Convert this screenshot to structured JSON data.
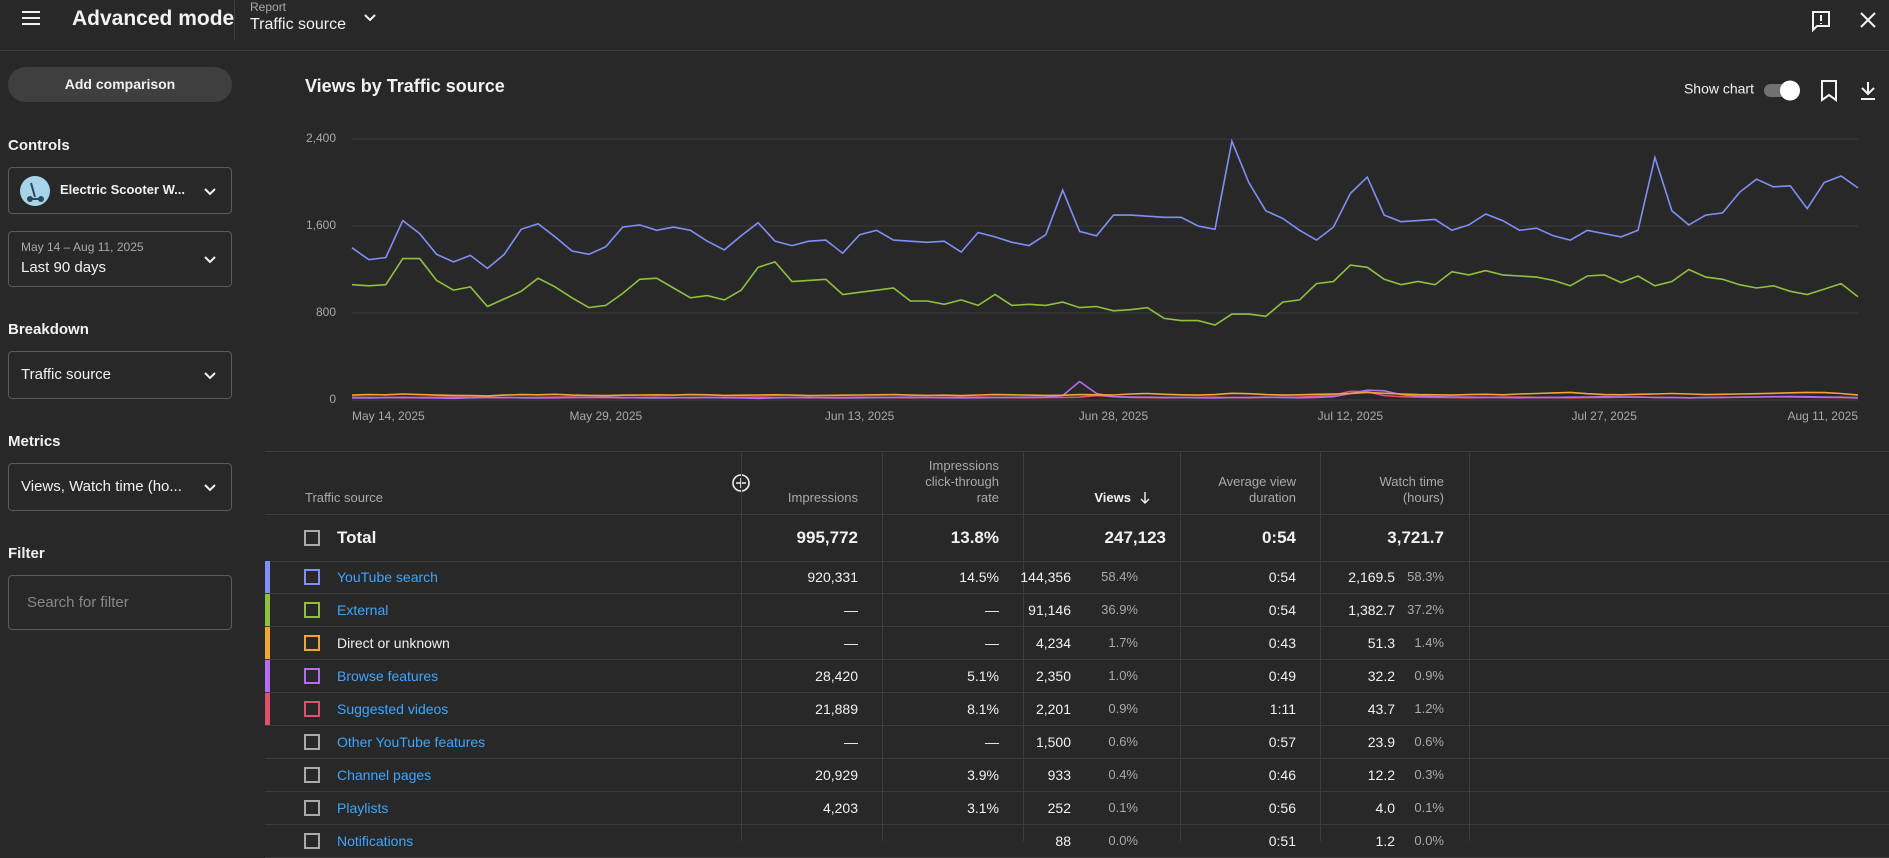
{
  "header": {
    "title": "Advanced mode",
    "report_label": "Report",
    "report": "Traffic source"
  },
  "sidebar": {
    "add_comparison": "Add comparison",
    "controls_label": "Controls",
    "content": "Electric Scooter W...",
    "date_range": "May 14 – Aug 11, 2025",
    "period": "Last 90 days",
    "breakdown_label": "Breakdown",
    "breakdown": "Traffic source",
    "metrics_label": "Metrics",
    "metrics": "Views, Watch time (ho...",
    "filter_label": "Filter",
    "filter_placeholder": "Search for filter"
  },
  "chart_data": {
    "type": "line",
    "title": "Views by Traffic source",
    "show_chart": "Show chart",
    "x": [
      "2025-05-14",
      "2025-05-15",
      "2025-05-16",
      "2025-05-17",
      "2025-05-18",
      "2025-05-19",
      "2025-05-20",
      "2025-05-21",
      "2025-05-22",
      "2025-05-23",
      "2025-05-24",
      "2025-05-25",
      "2025-05-26",
      "2025-05-27",
      "2025-05-28",
      "2025-05-29",
      "2025-05-30",
      "2025-05-31",
      "2025-06-01",
      "2025-06-02",
      "2025-06-03",
      "2025-06-04",
      "2025-06-05",
      "2025-06-06",
      "2025-06-07",
      "2025-06-08",
      "2025-06-09",
      "2025-06-10",
      "2025-06-11",
      "2025-06-12",
      "2025-06-13",
      "2025-06-14",
      "2025-06-15",
      "2025-06-16",
      "2025-06-17",
      "2025-06-18",
      "2025-06-19",
      "2025-06-20",
      "2025-06-21",
      "2025-06-22",
      "2025-06-23",
      "2025-06-24",
      "2025-06-25",
      "2025-06-26",
      "2025-06-27",
      "2025-06-28",
      "2025-06-29",
      "2025-06-30",
      "2025-07-01",
      "2025-07-02",
      "2025-07-03",
      "2025-07-04",
      "2025-07-05",
      "2025-07-06",
      "2025-07-07",
      "2025-07-08",
      "2025-07-09",
      "2025-07-10",
      "2025-07-11",
      "2025-07-12",
      "2025-07-13",
      "2025-07-14",
      "2025-07-15",
      "2025-07-16",
      "2025-07-17",
      "2025-07-18",
      "2025-07-19",
      "2025-07-20",
      "2025-07-21",
      "2025-07-22",
      "2025-07-23",
      "2025-07-24",
      "2025-07-25",
      "2025-07-26",
      "2025-07-27",
      "2025-07-28",
      "2025-07-29",
      "2025-07-30",
      "2025-07-31",
      "2025-08-01",
      "2025-08-02",
      "2025-08-03",
      "2025-08-04",
      "2025-08-05",
      "2025-08-06",
      "2025-08-07",
      "2025-08-08",
      "2025-08-09",
      "2025-08-10",
      "2025-08-11"
    ],
    "xticks": [
      {
        "value": "2025-05-14",
        "label": "May 14, 2025"
      },
      {
        "value": "2025-05-29",
        "label": "May 29, 2025"
      },
      {
        "value": "2025-06-13",
        "label": "Jun 13, 2025"
      },
      {
        "value": "2025-06-28",
        "label": "Jun 28, 2025"
      },
      {
        "value": "2025-07-12",
        "label": "Jul 12, 2025"
      },
      {
        "value": "2025-07-27",
        "label": "Jul 27, 2025"
      },
      {
        "value": "2025-08-11",
        "label": "Aug 11, 2025"
      }
    ],
    "ylim": [
      0,
      2400
    ],
    "yticks": [
      0,
      800,
      {
        "value": 1600,
        "label": "1,600"
      },
      {
        "value": 2400,
        "label": "2,400"
      }
    ],
    "grid": true,
    "series": [
      {
        "color": "#7f8ff5",
        "values": [
          1400,
          1290,
          1310,
          1650,
          1530,
          1340,
          1270,
          1330,
          1210,
          1340,
          1570,
          1620,
          1500,
          1370,
          1340,
          1410,
          1590,
          1610,
          1560,
          1590,
          1560,
          1460,
          1380,
          1510,
          1630,
          1460,
          1420,
          1460,
          1470,
          1350,
          1520,
          1560,
          1470,
          1460,
          1450,
          1460,
          1360,
          1540,
          1500,
          1450,
          1420,
          1520,
          1930,
          1550,
          1510,
          1700,
          1700,
          1690,
          1680,
          1680,
          1600,
          1570,
          2380,
          2000,
          1740,
          1670,
          1560,
          1470,
          1590,
          1900,
          2050,
          1700,
          1640,
          1650,
          1660,
          1560,
          1610,
          1710,
          1650,
          1560,
          1580,
          1510,
          1470,
          1560,
          1530,
          1500,
          1560,
          2230,
          1740,
          1610,
          1700,
          1720,
          1910,
          2030,
          1960,
          1970,
          1760,
          2000,
          2060,
          1950
        ]
      },
      {
        "color": "#8fc13e",
        "values": [
          1060,
          1050,
          1060,
          1300,
          1300,
          1100,
          1010,
          1040,
          860,
          930,
          1000,
          1120,
          1040,
          940,
          850,
          870,
          980,
          1110,
          1120,
          1030,
          940,
          960,
          920,
          1010,
          1220,
          1270,
          1090,
          1100,
          1110,
          970,
          990,
          1010,
          1030,
          910,
          910,
          880,
          920,
          870,
          970,
          870,
          880,
          870,
          900,
          850,
          860,
          820,
          830,
          850,
          750,
          730,
          730,
          690,
          790,
          790,
          770,
          900,
          920,
          1070,
          1090,
          1240,
          1220,
          1110,
          1060,
          1090,
          1060,
          1180,
          1150,
          1190,
          1150,
          1140,
          1130,
          1100,
          1050,
          1140,
          1150,
          1080,
          1140,
          1050,
          1090,
          1200,
          1130,
          1110,
          1060,
          1030,
          1050,
          1000,
          970,
          1020,
          1070,
          950
        ]
      },
      {
        "color": "#f0a534",
        "values": [
          45,
          50,
          48,
          55,
          50,
          45,
          42,
          40,
          38,
          45,
          50,
          48,
          52,
          45,
          42,
          40,
          44,
          46,
          48,
          45,
          50,
          48,
          42,
          44,
          46,
          48,
          45,
          40,
          42,
          44,
          46,
          48,
          50,
          45,
          42,
          44,
          40,
          46,
          50,
          48,
          45,
          42,
          44,
          50,
          48,
          46,
          55,
          60,
          52,
          48,
          45,
          50,
          62,
          58,
          50,
          45,
          48,
          52,
          55,
          60,
          70,
          62,
          55,
          50,
          48,
          45,
          50,
          52,
          48,
          55,
          60,
          65,
          70,
          58,
          50,
          48,
          52,
          55,
          60,
          55,
          50,
          52,
          55,
          58,
          62,
          66,
          70,
          68,
          60,
          45
        ]
      },
      {
        "color": "#b46cf0",
        "values": [
          20,
          18,
          22,
          25,
          20,
          18,
          16,
          20,
          22,
          24,
          20,
          18,
          20,
          22,
          24,
          26,
          22,
          20,
          18,
          20,
          22,
          24,
          20,
          18,
          16,
          20,
          22,
          24,
          20,
          18,
          20,
          22,
          24,
          26,
          22,
          20,
          18,
          20,
          22,
          24,
          26,
          28,
          40,
          170,
          60,
          30,
          28,
          26,
          24,
          22,
          20,
          18,
          22,
          24,
          26,
          22,
          20,
          24,
          30,
          60,
          90,
          85,
          50,
          35,
          30,
          28,
          26,
          24,
          22,
          20,
          22,
          24,
          26,
          28,
          30,
          28,
          26,
          24,
          22,
          20,
          22,
          24,
          26,
          28,
          30,
          32,
          30,
          28,
          26,
          20
        ]
      },
      {
        "color": "#e0506e",
        "values": [
          25,
          24,
          22,
          20,
          24,
          26,
          28,
          24,
          22,
          20,
          22,
          24,
          26,
          28,
          24,
          22,
          20,
          24,
          26,
          22,
          20,
          22,
          24,
          26,
          28,
          24,
          22,
          20,
          22,
          24,
          26,
          24,
          22,
          20,
          22,
          24,
          26,
          28,
          24,
          22,
          20,
          22,
          24,
          26,
          40,
          30,
          24,
          22,
          20,
          22,
          24,
          26,
          22,
          20,
          24,
          26,
          28,
          35,
          45,
          80,
          75,
          40,
          30,
          26,
          24,
          22,
          20,
          24,
          26,
          28,
          24,
          22,
          20,
          22,
          24,
          26,
          28,
          24,
          22,
          20,
          22,
          24,
          26,
          28,
          30,
          28,
          26,
          24,
          22,
          20
        ]
      }
    ]
  },
  "table": {
    "columns": [
      "Traffic source",
      "Impressions",
      "Impressions click-through rate",
      "Views",
      "Average view duration",
      "Watch time (hours)"
    ],
    "total": [
      "Total",
      "995,772",
      "13.8%",
      "247,123",
      "0:54",
      "3,721.7"
    ],
    "rows": [
      {
        "color": "#7f8ff5",
        "link": true,
        "cells": [
          "YouTube search",
          "920,331",
          "14.5%",
          "144,356",
          "58.4%",
          "0:54",
          "2,169.5",
          "58.3%"
        ]
      },
      {
        "color": "#8fc13e",
        "link": true,
        "cells": [
          "External",
          "—",
          "—",
          "91,146",
          "36.9%",
          "0:54",
          "1,382.7",
          "37.2%"
        ]
      },
      {
        "color": "#f0a534",
        "link": false,
        "cells": [
          "Direct or unknown",
          "—",
          "—",
          "4,234",
          "1.7%",
          "0:43",
          "51.3",
          "1.4%"
        ]
      },
      {
        "color": "#b46cf0",
        "link": true,
        "cells": [
          "Browse features",
          "28,420",
          "5.1%",
          "2,350",
          "1.0%",
          "0:49",
          "32.2",
          "0.9%"
        ]
      },
      {
        "color": "#e0506e",
        "link": true,
        "cells": [
          "Suggested videos",
          "21,889",
          "8.1%",
          "2,201",
          "0.9%",
          "1:11",
          "43.7",
          "1.2%"
        ]
      },
      {
        "link": true,
        "cells": [
          "Other YouTube features",
          "—",
          "—",
          "1,500",
          "0.6%",
          "0:57",
          "23.9",
          "0.6%"
        ]
      },
      {
        "link": true,
        "cells": [
          "Channel pages",
          "20,929",
          "3.9%",
          "933",
          "0.4%",
          "0:46",
          "12.2",
          "0.3%"
        ]
      },
      {
        "link": true,
        "cells": [
          "Playlists",
          "4,203",
          "3.1%",
          "252",
          "0.1%",
          "0:56",
          "4.0",
          "0.1%"
        ]
      },
      {
        "link": true,
        "cells": [
          "Notifications",
          null,
          null,
          "88",
          "0.0%",
          "0:51",
          "1.2",
          "0.0%"
        ]
      }
    ]
  }
}
